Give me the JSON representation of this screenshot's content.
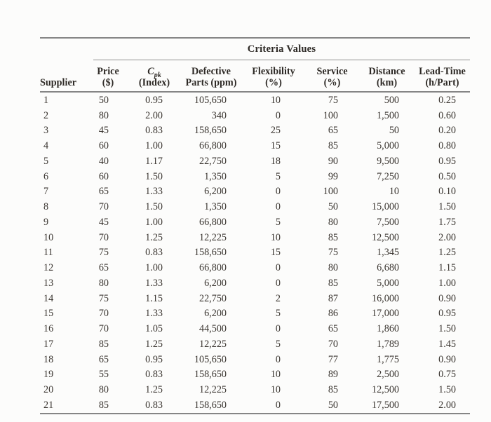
{
  "table": {
    "criteria_header": "Criteria Values",
    "columns": [
      {
        "key": "supplier",
        "label": "Supplier"
      },
      {
        "key": "price",
        "line1": "Price",
        "line2": "($)"
      },
      {
        "key": "cpk",
        "line1_italic": "C",
        "line1_sub": "pk",
        "line2": "(Index)"
      },
      {
        "key": "defective-parts",
        "line1": "Defective",
        "line2": "Parts (ppm)"
      },
      {
        "key": "flexibility",
        "line1": "Flexibility",
        "line2": "(%)"
      },
      {
        "key": "service",
        "line1": "Service",
        "line2": "(%)"
      },
      {
        "key": "distance",
        "line1": "Distance",
        "line2": "(km)"
      },
      {
        "key": "lead-time",
        "line1": "Lead-Time",
        "line2": "(h/Part)"
      }
    ],
    "rows": [
      [
        "1",
        "50",
        "0.95",
        "105,650",
        "10",
        "75",
        "500",
        "0.25"
      ],
      [
        "2",
        "80",
        "2.00",
        "340",
        "0",
        "100",
        "1,500",
        "0.60"
      ],
      [
        "3",
        "45",
        "0.83",
        "158,650",
        "25",
        "65",
        "50",
        "0.20"
      ],
      [
        "4",
        "60",
        "1.00",
        "66,800",
        "15",
        "85",
        "5,000",
        "0.80"
      ],
      [
        "5",
        "40",
        "1.17",
        "22,750",
        "18",
        "90",
        "9,500",
        "0.95"
      ],
      [
        "6",
        "60",
        "1.50",
        "1,350",
        "5",
        "99",
        "7,250",
        "0.50"
      ],
      [
        "7",
        "65",
        "1.33",
        "6,200",
        "0",
        "100",
        "10",
        "0.10"
      ],
      [
        "8",
        "70",
        "1.50",
        "1,350",
        "0",
        "50",
        "15,000",
        "1.50"
      ],
      [
        "9",
        "45",
        "1.00",
        "66,800",
        "5",
        "80",
        "7,500",
        "1.75"
      ],
      [
        "10",
        "70",
        "1.25",
        "12,225",
        "10",
        "85",
        "12,500",
        "2.00"
      ],
      [
        "11",
        "75",
        "0.83",
        "158,650",
        "15",
        "75",
        "1,345",
        "1.25"
      ],
      [
        "12",
        "65",
        "1.00",
        "66,800",
        "0",
        "80",
        "6,680",
        "1.15"
      ],
      [
        "13",
        "80",
        "1.33",
        "6,200",
        "0",
        "85",
        "5,000",
        "1.00"
      ],
      [
        "14",
        "75",
        "1.15",
        "22,750",
        "2",
        "87",
        "16,000",
        "0.90"
      ],
      [
        "15",
        "70",
        "1.33",
        "6,200",
        "5",
        "86",
        "17,000",
        "0.95"
      ],
      [
        "16",
        "70",
        "1.05",
        "44,500",
        "0",
        "65",
        "1,860",
        "1.50"
      ],
      [
        "17",
        "85",
        "1.25",
        "12,225",
        "5",
        "70",
        "1,789",
        "1.45"
      ],
      [
        "18",
        "65",
        "0.95",
        "105,650",
        "0",
        "77",
        "1,775",
        "0.90"
      ],
      [
        "19",
        "55",
        "0.83",
        "158,650",
        "10",
        "89",
        "2,500",
        "0.75"
      ],
      [
        "20",
        "80",
        "1.25",
        "12,225",
        "10",
        "85",
        "12,500",
        "1.50"
      ],
      [
        "21",
        "85",
        "0.83",
        "158,650",
        "0",
        "50",
        "17,500",
        "2.00"
      ]
    ]
  },
  "colors": {
    "rule": "#858585",
    "text": "#3a3530",
    "header_text": "#2e2a26",
    "background": "#fcfcfb"
  }
}
